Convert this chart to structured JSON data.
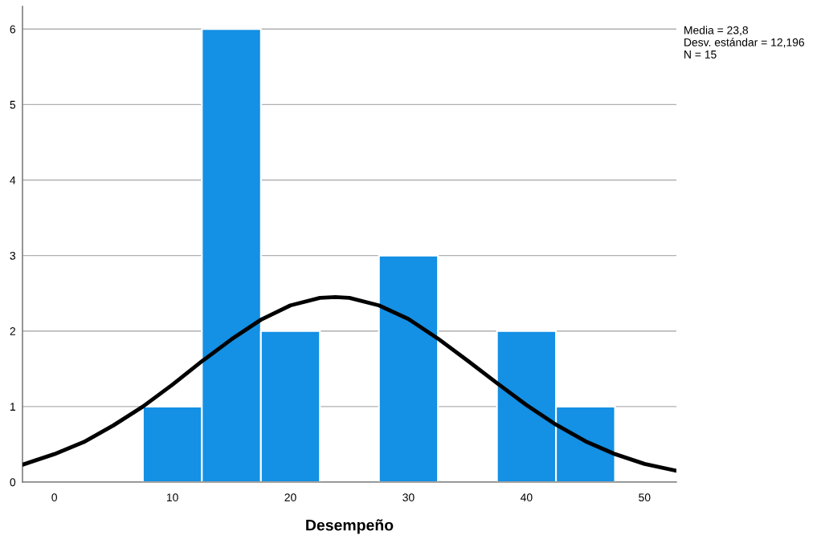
{
  "chart_data": {
    "type": "histogram",
    "xlabel": "Desempeño",
    "series": [
      {
        "bins": [
          7.5,
          12.5,
          17.5,
          22.5,
          27.5,
          32.5,
          37.5,
          42.5,
          47.5
        ],
        "values": [
          1,
          6,
          2,
          0,
          3,
          0,
          2,
          1
        ],
        "color": "#1490e4"
      },
      {
        "type": "line",
        "color": "#000000",
        "x": [
          -2.7,
          0,
          2.5,
          5,
          7.5,
          10,
          12.5,
          15,
          17.5,
          20,
          22.5,
          23.8,
          25,
          27.5,
          30,
          32.5,
          35,
          37.5,
          40,
          42.5,
          45,
          47.5,
          50,
          52.7
        ],
        "values": [
          0.23,
          0.37,
          0.53,
          0.75,
          1.0,
          1.29,
          1.6,
          1.89,
          2.15,
          2.34,
          2.44,
          2.45,
          2.44,
          2.34,
          2.16,
          1.9,
          1.61,
          1.31,
          1.02,
          0.76,
          0.54,
          0.37,
          0.24,
          0.15
        ]
      }
    ],
    "xlim": [
      -2.7,
      52.7
    ],
    "xticks": [
      0,
      10,
      20,
      30,
      40,
      50
    ],
    "ylim": [
      0,
      6.3
    ],
    "yticks": [
      0,
      1,
      2,
      3,
      4,
      5,
      6
    ],
    "grid": "y",
    "annotations": [
      "Media = 23,8",
      "Desv. estándar = 12,196",
      "N = 15"
    ]
  }
}
